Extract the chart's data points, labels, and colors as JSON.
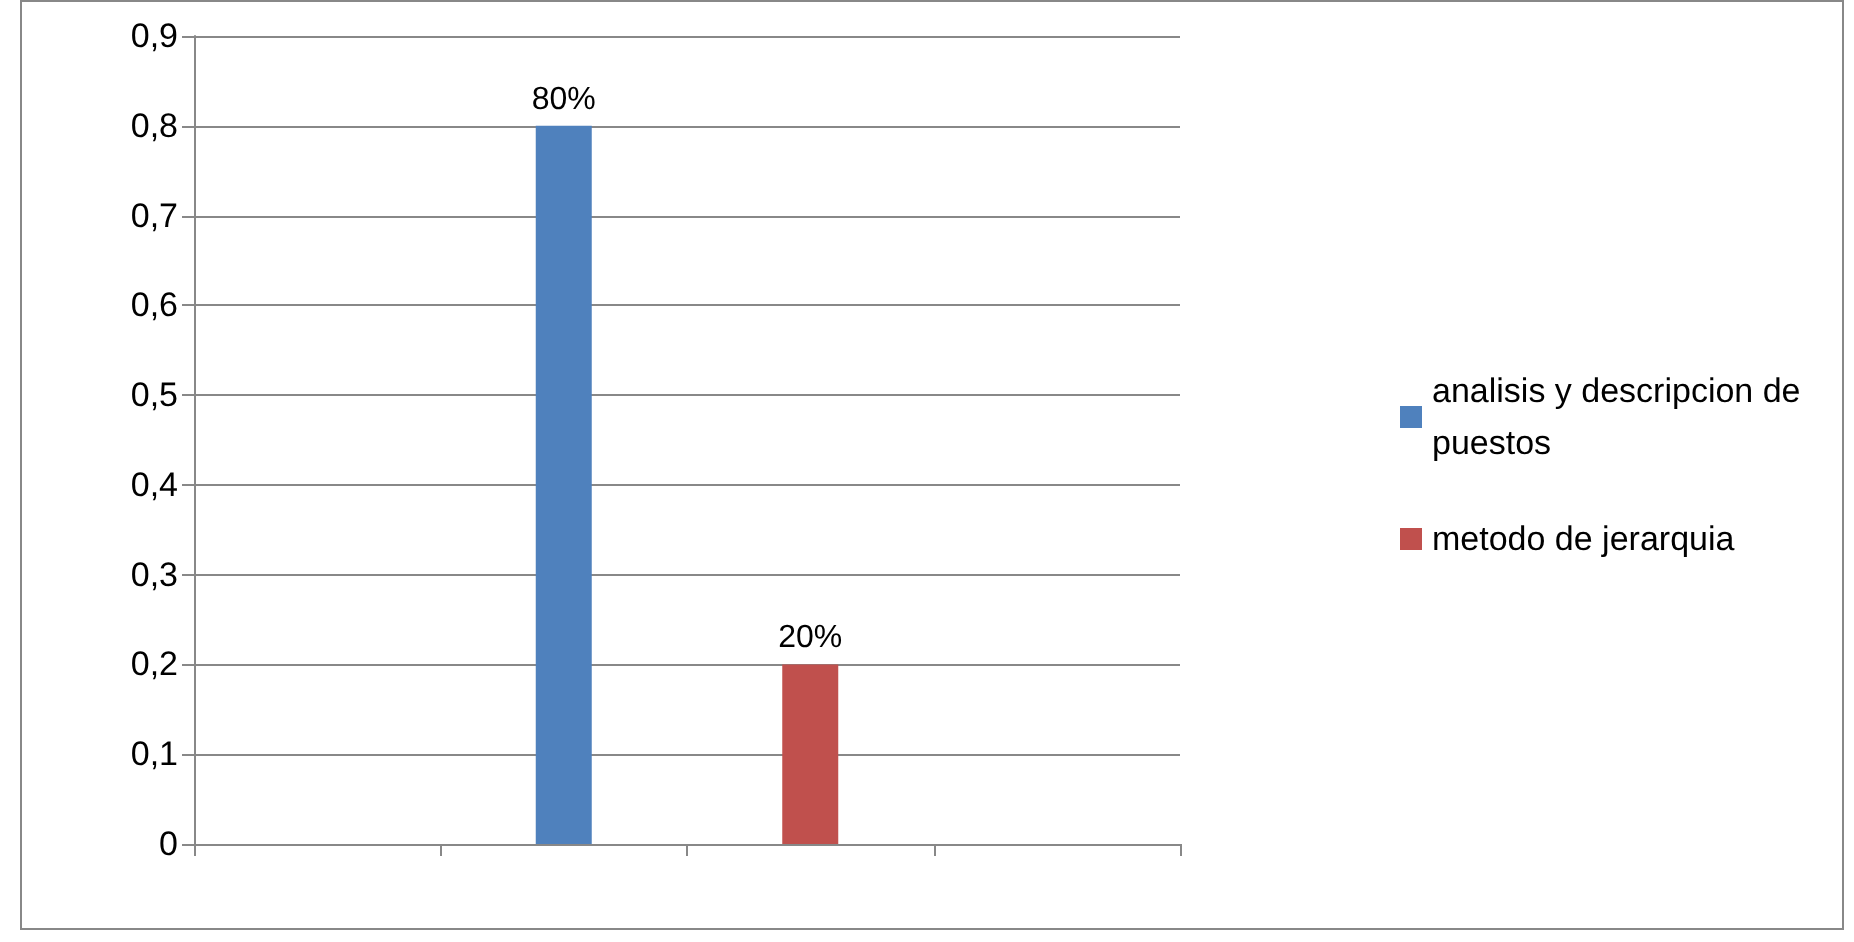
{
  "chart_data": {
    "type": "bar",
    "categories": [
      null,
      null,
      null,
      null
    ],
    "series": [
      {
        "name": "analisis y descripcion de puestos",
        "color": "#4f81bd",
        "values": [
          null,
          0.8,
          null,
          null
        ],
        "value_labels": [
          null,
          "80%",
          null,
          null
        ]
      },
      {
        "name": "metodo de jerarquia",
        "color": "#c0504d",
        "values": [
          null,
          null,
          0.2,
          null
        ],
        "value_labels": [
          null,
          null,
          "20%",
          null
        ]
      }
    ],
    "ylim": [
      0,
      0.9
    ],
    "yticks": [
      {
        "value": 0,
        "label": "0"
      },
      {
        "value": 0.1,
        "label": "0,1"
      },
      {
        "value": 0.2,
        "label": "0,2"
      },
      {
        "value": 0.3,
        "label": "0,3"
      },
      {
        "value": 0.4,
        "label": "0,4"
      },
      {
        "value": 0.5,
        "label": "0,5"
      },
      {
        "value": 0.6,
        "label": "0,6"
      },
      {
        "value": 0.7,
        "label": "0,7"
      },
      {
        "value": 0.8,
        "label": "0,8"
      },
      {
        "value": 0.9,
        "label": "0,9"
      }
    ],
    "grid": "y",
    "legend": "right"
  }
}
